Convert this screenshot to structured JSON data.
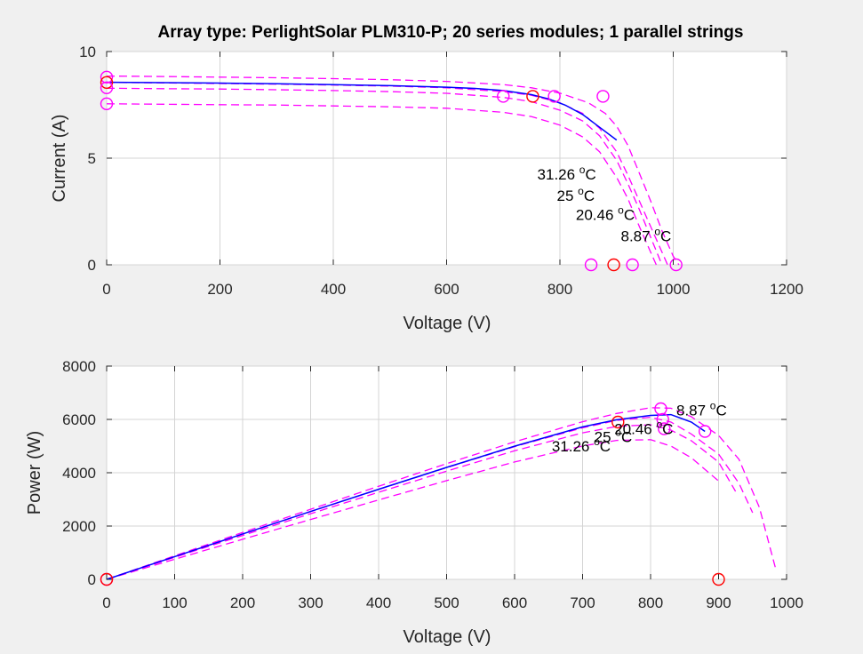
{
  "title": "Array type: PerlightSolar PLM310-P; 20 series modules; 1 parallel strings",
  "colors": {
    "background": "#f0f0f0",
    "axes": "#ffffff",
    "model": "#0000ff",
    "temperature_curves": "#ff00ff",
    "markers_25C": "#ff0000",
    "markers_other": "#ff00ff"
  },
  "chart_data": [
    {
      "type": "line",
      "panel": "top",
      "xlabel": "Voltage (V)",
      "ylabel": "Current (A)",
      "xlim": [
        0,
        1200
      ],
      "ylim": [
        0,
        10
      ],
      "xticks": [
        0,
        200,
        400,
        600,
        800,
        1000,
        1200
      ],
      "yticks": [
        0,
        5,
        10
      ],
      "grid": true,
      "series": [
        {
          "color": "#0000ff",
          "style": "solid",
          "x": [
            0,
            100,
            200,
            300,
            400,
            500,
            600,
            650,
            700,
            750,
            780,
            810,
            840,
            870,
            900
          ],
          "y": [
            8.56,
            8.54,
            8.52,
            8.49,
            8.45,
            8.4,
            8.33,
            8.27,
            8.17,
            7.98,
            7.78,
            7.48,
            7.05,
            6.45,
            5.85
          ]
        },
        {
          "color": "#ff00ff",
          "style": "dashed",
          "x": [
            0,
            100,
            200,
            300,
            400,
            500,
            600,
            700,
            750,
            800,
            850,
            880,
            900,
            920,
            940,
            960,
            980,
            1000,
            1010
          ],
          "y": [
            8.85,
            8.83,
            8.8,
            8.77,
            8.73,
            8.68,
            8.6,
            8.45,
            8.3,
            8.05,
            7.6,
            7.1,
            6.5,
            5.6,
            4.3,
            3.0,
            1.6,
            0.4,
            0
          ]
        },
        {
          "color": "#ff00ff",
          "style": "dashed",
          "x": [
            0,
            100,
            200,
            300,
            400,
            500,
            600,
            700,
            750,
            800,
            840,
            870,
            900,
            920,
            940,
            960,
            980,
            990
          ],
          "y": [
            8.55,
            8.53,
            8.5,
            8.47,
            8.43,
            8.38,
            8.3,
            8.12,
            7.95,
            7.6,
            7.1,
            6.4,
            5.3,
            4.2,
            3.0,
            1.8,
            0.6,
            0
          ]
        },
        {
          "color": "#ff00ff",
          "style": "dashed",
          "x": [
            0,
            100,
            200,
            300,
            400,
            500,
            600,
            700,
            750,
            800,
            840,
            870,
            900,
            920,
            940,
            960,
            980
          ],
          "y": [
            8.28,
            8.26,
            8.24,
            8.21,
            8.17,
            8.12,
            8.04,
            7.85,
            7.65,
            7.25,
            6.75,
            6.05,
            4.9,
            3.8,
            2.6,
            1.3,
            0
          ]
        },
        {
          "color": "#ff00ff",
          "style": "dashed",
          "x": [
            0,
            100,
            200,
            300,
            400,
            500,
            600,
            700,
            750,
            800,
            840,
            870,
            900,
            920,
            940,
            960,
            970
          ],
          "y": [
            7.55,
            7.53,
            7.51,
            7.49,
            7.45,
            7.41,
            7.34,
            7.15,
            6.95,
            6.55,
            6.0,
            5.3,
            4.1,
            3.1,
            1.8,
            0.6,
            0
          ]
        }
      ],
      "markers": [
        {
          "x": 0,
          "y": 8.8,
          "color": "#ff00ff"
        },
        {
          "x": 0,
          "y": 8.55,
          "color": "#ff0000"
        },
        {
          "x": 0,
          "y": 8.3,
          "color": "#ff00ff"
        },
        {
          "x": 0,
          "y": 7.55,
          "color": "#ff00ff"
        },
        {
          "x": 700,
          "y": 7.9,
          "color": "#ff00ff"
        },
        {
          "x": 752,
          "y": 7.9,
          "color": "#ff0000"
        },
        {
          "x": 790,
          "y": 7.9,
          "color": "#ff00ff"
        },
        {
          "x": 876,
          "y": 7.9,
          "color": "#ff00ff"
        },
        {
          "x": 855,
          "y": 0,
          "color": "#ff00ff"
        },
        {
          "x": 895,
          "y": 0,
          "color": "#ff0000"
        },
        {
          "x": 928,
          "y": 0,
          "color": "#ff00ff"
        },
        {
          "x": 1005,
          "y": 0,
          "color": "#ff00ff"
        }
      ],
      "annotations": [
        {
          "text": "31.26",
          "unit": "C",
          "x": 812,
          "y": 4.0
        },
        {
          "text": "25",
          "unit": "C",
          "x": 828,
          "y": 3.0
        },
        {
          "text": "20.46",
          "unit": "C",
          "x": 880,
          "y": 2.1
        },
        {
          "text": "8.87",
          "unit": "C",
          "x": 952,
          "y": 1.1
        }
      ]
    },
    {
      "type": "line",
      "panel": "bottom",
      "xlabel": "Voltage (V)",
      "ylabel": "Power (W)",
      "xlim": [
        0,
        1000
      ],
      "ylim": [
        0,
        8000
      ],
      "xticks": [
        0,
        100,
        200,
        300,
        400,
        500,
        600,
        700,
        800,
        900,
        1000
      ],
      "yticks": [
        0,
        2000,
        4000,
        6000,
        8000
      ],
      "grid": true,
      "series": [
        {
          "color": "#0000ff",
          "style": "solid",
          "x": [
            0,
            100,
            200,
            300,
            400,
            500,
            600,
            700,
            750,
            800,
            830,
            860,
            880
          ],
          "y": [
            0,
            854,
            1704,
            2547,
            3380,
            4200,
            4998,
            5719,
            5985,
            6150,
            6180,
            5900,
            5550
          ]
        },
        {
          "color": "#ff00ff",
          "style": "dashed",
          "x": [
            0,
            100,
            200,
            300,
            400,
            500,
            600,
            700,
            750,
            800,
            830,
            860,
            900,
            930,
            960,
            985
          ],
          "y": [
            0,
            883,
            1760,
            2631,
            3492,
            4340,
            5160,
            5915,
            6225,
            6440,
            6420,
            6100,
            5400,
            4500,
            2700,
            300
          ]
        },
        {
          "color": "#ff00ff",
          "style": "dashed",
          "x": [
            0,
            100,
            200,
            300,
            400,
            500,
            600,
            700,
            750,
            800,
            830,
            860,
            900,
            930,
            950
          ],
          "y": [
            0,
            853,
            1700,
            2541,
            3372,
            4190,
            4980,
            5684,
            5963,
            6080,
            5900,
            5450,
            4700,
            3600,
            2500
          ]
        },
        {
          "color": "#ff00ff",
          "style": "dashed",
          "x": [
            0,
            100,
            200,
            300,
            400,
            500,
            600,
            700,
            750,
            800,
            830,
            860,
            900,
            925
          ],
          "y": [
            0,
            826,
            1648,
            2463,
            3268,
            4060,
            4824,
            5495,
            5738,
            5800,
            5600,
            5200,
            4400,
            3300
          ]
        },
        {
          "color": "#ff00ff",
          "style": "dashed",
          "x": [
            0,
            100,
            200,
            300,
            400,
            500,
            600,
            700,
            750,
            800,
            830,
            860,
            900
          ],
          "y": [
            0,
            753,
            1502,
            2247,
            2980,
            3705,
            4404,
            5005,
            5213,
            5240,
            5000,
            4560,
            3690
          ]
        }
      ],
      "markers": [
        {
          "x": 0,
          "y": 0,
          "color": "#ff00ff"
        },
        {
          "x": 0,
          "y": 0,
          "color": "#ff0000"
        },
        {
          "x": 752,
          "y": 5900,
          "color": "#ff0000"
        },
        {
          "x": 815,
          "y": 6400,
          "color": "#ff00ff"
        },
        {
          "x": 818,
          "y": 6000,
          "color": "#ff00ff"
        },
        {
          "x": 820,
          "y": 5650,
          "color": "#ff00ff"
        },
        {
          "x": 880,
          "y": 5550,
          "color": "#ff00ff"
        },
        {
          "x": 900,
          "y": 0,
          "color": "#ff0000"
        }
      ],
      "annotations": [
        {
          "text": "8.87",
          "unit": "C",
          "x": 875,
          "y": 6150
        },
        {
          "text": "20.46",
          "unit": "C",
          "x": 790,
          "y": 5450
        },
        {
          "text": "25",
          "unit": "C",
          "x": 745,
          "y": 5150
        },
        {
          "text": "31.26",
          "unit": "C",
          "x": 698,
          "y": 4800
        }
      ]
    }
  ]
}
